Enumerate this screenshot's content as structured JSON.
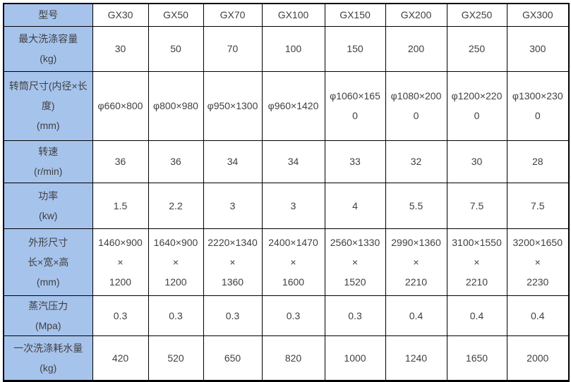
{
  "colors": {
    "label_column_bg": "#a6c3ec",
    "border": "#000000",
    "text": "#404040"
  },
  "chart_data": {
    "type": "table",
    "header": {
      "label": "型号",
      "models": [
        "GX30",
        "GX50",
        "GX70",
        "GX100",
        "GX150",
        "GX200",
        "GX250",
        "GX300"
      ]
    },
    "rows": [
      {
        "label": "最大洗涤容量\n(kg)",
        "values": [
          "30",
          "50",
          "70",
          "100",
          "150",
          "200",
          "250",
          "300"
        ]
      },
      {
        "label": "转筒尺寸(内径×长\n度)\n(mm)",
        "values": [
          "φ660×800",
          "φ800×980",
          "φ950×1300",
          "φ960×1420",
          "φ1060×165\n0",
          "φ1080×200\n0",
          "φ1200×220\n0",
          "φ1300×230\n0"
        ]
      },
      {
        "label": "转速\n(r/min)",
        "values": [
          "36",
          "36",
          "34",
          "34",
          "33",
          "32",
          "30",
          "28"
        ]
      },
      {
        "label": "功率\n(kw)",
        "values": [
          "1.5",
          "2.2",
          "3",
          "3",
          "4",
          "5.5",
          "7.5",
          "7.5"
        ]
      },
      {
        "label": "外形尺寸\n长×宽×高\n(mm)",
        "values": [
          "1460×900\n×\n1200",
          "1640×900\n×\n1200",
          "2220×1340\n×\n1360",
          "2400×1470\n×\n1600",
          "2560×1330\n×\n1520",
          "2990×1360\n×\n2210",
          "3100×1550\n×\n2210",
          "3200×1650\n×\n2230"
        ]
      },
      {
        "label": "蒸汽压力\n(Mpa)",
        "values": [
          "0.3",
          "0.3",
          "0.3",
          "0.3",
          "0.3",
          "0.4",
          "0.4",
          "0.4"
        ]
      },
      {
        "label": "一次洗涤耗水量\n(kg)",
        "values": [
          "420",
          "520",
          "650",
          "820",
          "1000",
          "1240",
          "1650",
          "2000"
        ]
      }
    ]
  }
}
